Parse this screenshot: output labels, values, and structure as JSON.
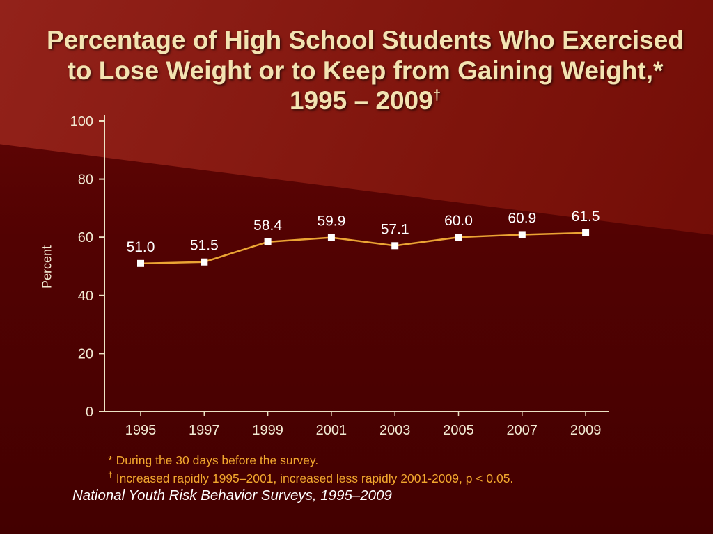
{
  "slide": {
    "title_line1": "Percentage of High School Students Who Exercised",
    "title_line2": "to Lose Weight or to Keep from Gaining Weight,*",
    "title_line3": "1995 – 2009",
    "title_dagger": "†",
    "footnote1": "* During the 30 days before the survey.",
    "footnote2_dagger": "†",
    "footnote2_text": "Increased  rapidly 1995–2001, increased less rapidly 2001-2009, p < 0.05.",
    "source": "National Youth Risk Behavior Surveys, 1995–2009"
  },
  "chart_data": {
    "type": "line",
    "title": "Percentage of High School Students Who Exercised to Lose Weight or to Keep from Gaining Weight, 1995 – 2009",
    "categories": [
      "1995",
      "1997",
      "1999",
      "2001",
      "2003",
      "2005",
      "2007",
      "2009"
    ],
    "series": [
      {
        "name": "Exercised to lose weight or to keep from gaining weight",
        "values": [
          51.0,
          51.5,
          58.4,
          59.9,
          57.1,
          60.0,
          60.9,
          61.5
        ]
      }
    ],
    "data_labels": [
      "51.0",
      "51.5",
      "58.4",
      "59.9",
      "57.1",
      "60.0",
      "60.9",
      "61.5"
    ],
    "xlabel": "",
    "ylabel": "Percent",
    "ylim": [
      0,
      100
    ],
    "yticks": [
      0,
      20,
      40,
      60,
      80,
      100
    ],
    "grid": false,
    "legend": "none",
    "line_color": "#EBA434",
    "marker": "square",
    "marker_color": "#FFFFFF",
    "axis_color": "#EDE2C4",
    "tick_label_color": "#F2EAD3",
    "data_label_color": "#FFFFFF"
  },
  "colors": {
    "background_dark": "#4C0101",
    "background_light": "#8E1E12",
    "title_text": "#F3E3B2",
    "footnote_text": "#F2A72E",
    "source_text": "#FFFFFF"
  }
}
